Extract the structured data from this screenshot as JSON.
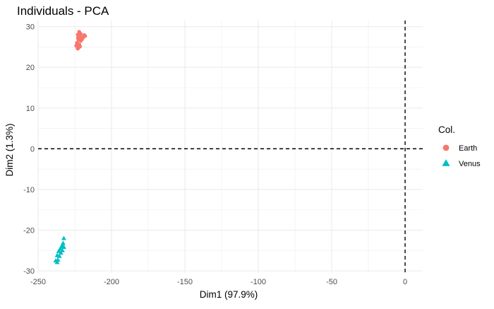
{
  "chart_data": {
    "type": "scatter",
    "title": "Individuals - PCA",
    "xlabel": "Dim1 (97.9%)",
    "ylabel": "Dim2 (1.3%)",
    "xlim": [
      -250,
      12
    ],
    "ylim": [
      -30.5,
      31.5
    ],
    "xticks": [
      -250,
      -200,
      -150,
      -100,
      -50,
      0
    ],
    "yticks": [
      -30,
      -20,
      -10,
      0,
      10,
      20,
      30
    ],
    "grid": true,
    "reference_lines": {
      "x": 0,
      "y": 0,
      "style": "dashed"
    },
    "legend": {
      "title": "Col.",
      "position": "right"
    },
    "series": [
      {
        "name": "Earth",
        "color": "#F8766D",
        "marker": "circle",
        "points": [
          [
            -223.0,
            28.0
          ],
          [
            -222.0,
            28.7
          ],
          [
            -221.5,
            27.6
          ],
          [
            -220.5,
            27.3
          ],
          [
            -219.0,
            27.5
          ],
          [
            -218.0,
            27.7
          ],
          [
            -222.5,
            26.8
          ],
          [
            -221.0,
            26.5
          ],
          [
            -223.5,
            26.0
          ],
          [
            -222.0,
            25.6
          ],
          [
            -224.0,
            25.3
          ],
          [
            -221.5,
            25.1
          ],
          [
            -222.5,
            24.8
          ],
          [
            -223.0,
            24.6
          ],
          [
            -220.0,
            26.9
          ],
          [
            -218.5,
            27.9
          ],
          [
            -221.0,
            28.2
          ],
          [
            -222.8,
            27.2
          ]
        ]
      },
      {
        "name": "Venus",
        "color": "#00BFC4",
        "marker": "triangle",
        "points": [
          [
            -232.5,
            -22.0
          ],
          [
            -233.0,
            -23.2
          ],
          [
            -234.0,
            -24.0
          ],
          [
            -232.5,
            -24.2
          ],
          [
            -235.0,
            -24.6
          ],
          [
            -236.0,
            -25.2
          ],
          [
            -233.5,
            -25.0
          ],
          [
            -234.5,
            -25.6
          ],
          [
            -237.0,
            -26.2
          ],
          [
            -235.5,
            -26.4
          ],
          [
            -236.5,
            -27.3
          ],
          [
            -238.0,
            -27.5
          ],
          [
            -237.0,
            -27.9
          ],
          [
            -233.0,
            -23.8
          ]
        ]
      }
    ]
  }
}
